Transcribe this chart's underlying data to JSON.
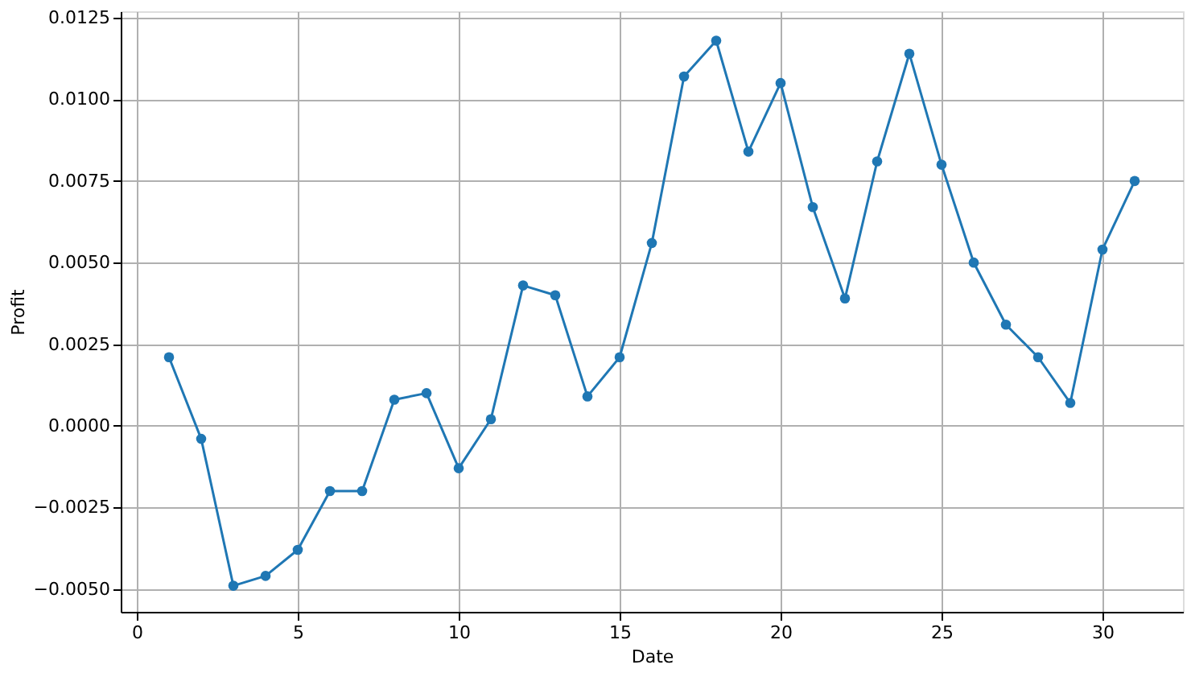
{
  "chart_data": {
    "type": "line",
    "xlabel": "Date",
    "ylabel": "Profit",
    "x": [
      1,
      2,
      3,
      4,
      5,
      6,
      7,
      8,
      9,
      10,
      11,
      12,
      13,
      14,
      15,
      16,
      17,
      18,
      19,
      20,
      21,
      22,
      23,
      24,
      25,
      26,
      27,
      28,
      29,
      30,
      31
    ],
    "series": [
      {
        "color": "#1f77b4",
        "values": [
          0.0021,
          -0.0004,
          -0.0049,
          -0.0046,
          -0.0038,
          -0.002,
          -0.002,
          0.0008,
          0.001,
          -0.0013,
          0.0002,
          0.0043,
          0.004,
          0.0009,
          0.0021,
          0.0056,
          0.0107,
          0.0118,
          0.0084,
          0.0105,
          0.0067,
          0.0039,
          0.0081,
          0.0114,
          0.008,
          0.005,
          0.0031,
          0.0021,
          0.0007,
          0.0054,
          0.0075
        ]
      }
    ],
    "xlim": [
      -0.5,
      32.5
    ],
    "xticks": [
      0,
      5,
      10,
      15,
      20,
      25,
      30
    ],
    "ylim": [
      -0.0057,
      0.0127
    ],
    "yticks": [
      {
        "value": -0.005,
        "label": "−0.0050"
      },
      {
        "value": -0.0025,
        "label": "−0.0025"
      },
      {
        "value": 0,
        "label": "0.0000"
      },
      {
        "value": 0.0025,
        "label": "0.0025"
      },
      {
        "value": 0.005,
        "label": "0.0050"
      },
      {
        "value": 0.0075,
        "label": "0.0075"
      },
      {
        "value": 0.01,
        "label": "0.0100"
      },
      {
        "value": 0.0125,
        "label": "0.0125"
      }
    ],
    "grid": true,
    "marker": "circle",
    "line_style": "solid"
  }
}
